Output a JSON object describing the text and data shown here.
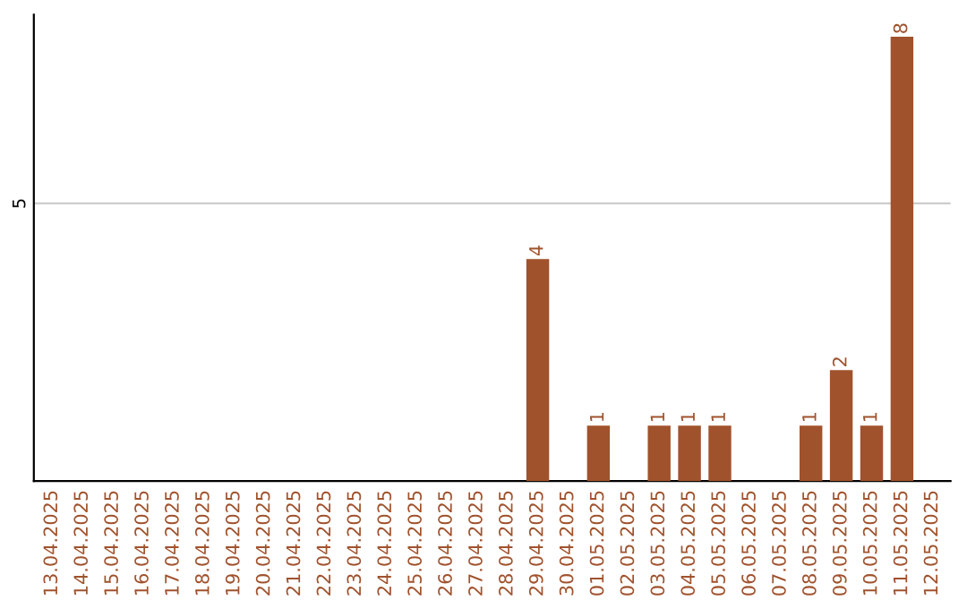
{
  "chart_data": {
    "type": "bar",
    "categories": [
      "13.04.2025",
      "14.04.2025",
      "15.04.2025",
      "16.04.2025",
      "17.04.2025",
      "18.04.2025",
      "19.04.2025",
      "20.04.2025",
      "21.04.2025",
      "22.04.2025",
      "23.04.2025",
      "24.04.2025",
      "25.04.2025",
      "26.04.2025",
      "27.04.2025",
      "28.04.2025",
      "29.04.2025",
      "30.04.2025",
      "01.05.2025",
      "02.05.2025",
      "03.05.2025",
      "04.05.2025",
      "05.05.2025",
      "06.05.2025",
      "07.05.2025",
      "08.05.2025",
      "09.05.2025",
      "10.05.2025",
      "11.05.2025",
      "12.05.2025"
    ],
    "values": [
      null,
      null,
      null,
      null,
      null,
      null,
      null,
      null,
      null,
      null,
      null,
      null,
      null,
      null,
      null,
      null,
      4,
      null,
      1,
      null,
      1,
      1,
      1,
      null,
      null,
      1,
      2,
      1,
      8,
      null
    ],
    "data_labels": true,
    "color": "#a0522d",
    "ylim": [
      0,
      8.4
    ],
    "yticks": [
      5
    ],
    "grid": "y"
  }
}
